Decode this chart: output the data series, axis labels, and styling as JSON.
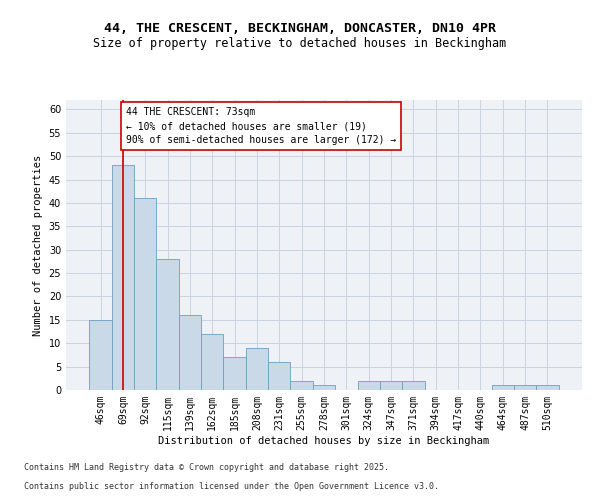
{
  "title_line1": "44, THE CRESCENT, BECKINGHAM, DONCASTER, DN10 4PR",
  "title_line2": "Size of property relative to detached houses in Beckingham",
  "xlabel": "Distribution of detached houses by size in Beckingham",
  "ylabel": "Number of detached properties",
  "categories": [
    "46sqm",
    "69sqm",
    "92sqm",
    "115sqm",
    "139sqm",
    "162sqm",
    "185sqm",
    "208sqm",
    "231sqm",
    "255sqm",
    "278sqm",
    "301sqm",
    "324sqm",
    "347sqm",
    "371sqm",
    "394sqm",
    "417sqm",
    "440sqm",
    "464sqm",
    "487sqm",
    "510sqm"
  ],
  "values": [
    15,
    48,
    41,
    28,
    16,
    12,
    7,
    9,
    6,
    2,
    1,
    0,
    2,
    2,
    2,
    0,
    0,
    0,
    1,
    1,
    1
  ],
  "bar_color": "#c9d9e8",
  "bar_edge_color": "#6a9fc0",
  "annotation_box_color": "#cc0000",
  "annotation_line_color": "#cc0000",
  "annotation_text_line1": "44 THE CRESCENT: 73sqm",
  "annotation_text_line2": "← 10% of detached houses are smaller (19)",
  "annotation_text_line3": "90% of semi-detached houses are larger (172) →",
  "ylim": [
    0,
    62
  ],
  "yticks": [
    0,
    5,
    10,
    15,
    20,
    25,
    30,
    35,
    40,
    45,
    50,
    55,
    60
  ],
  "grid_color": "#c8d4e0",
  "background_color": "#eef2f7",
  "footer_line1": "Contains HM Land Registry data © Crown copyright and database right 2025.",
  "footer_line2": "Contains public sector information licensed under the Open Government Licence v3.0.",
  "title_fontsize": 9.5,
  "subtitle_fontsize": 8.5,
  "axis_label_fontsize": 7.5,
  "tick_fontsize": 7,
  "annotation_fontsize": 7,
  "footer_fontsize": 6
}
